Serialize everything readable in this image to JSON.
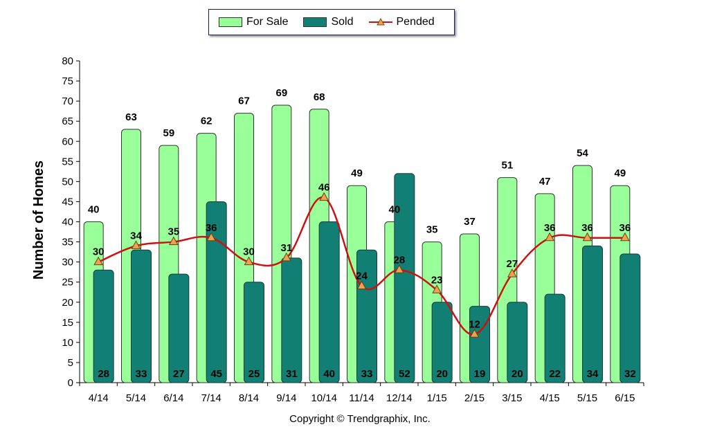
{
  "chart_data": {
    "type": "bar",
    "categories": [
      "4/14",
      "5/14",
      "6/14",
      "7/14",
      "8/14",
      "9/14",
      "10/14",
      "11/14",
      "12/14",
      "1/15",
      "2/15",
      "3/15",
      "4/15",
      "5/15",
      "6/15"
    ],
    "series": [
      {
        "name": "For Sale",
        "type": "bar",
        "color": "#99ff99",
        "values": [
          40,
          63,
          59,
          62,
          67,
          69,
          68,
          49,
          40,
          35,
          37,
          51,
          47,
          54,
          49
        ]
      },
      {
        "name": "Sold",
        "type": "bar",
        "color": "#127f74",
        "values": [
          28,
          33,
          27,
          45,
          25,
          31,
          40,
          33,
          52,
          20,
          19,
          20,
          22,
          34,
          32
        ]
      },
      {
        "name": "Pended",
        "type": "line",
        "color": "#cc1111",
        "marker_color": "#f0a050",
        "values": [
          30,
          34,
          35,
          36,
          30,
          31,
          46,
          24,
          28,
          23,
          12,
          27,
          36,
          36,
          36
        ]
      }
    ],
    "title": "",
    "xlabel": "",
    "ylabel": "Number of Homes",
    "ylim": [
      0,
      80
    ],
    "yticks": [
      0,
      5,
      10,
      15,
      20,
      25,
      30,
      35,
      40,
      45,
      50,
      55,
      60,
      65,
      70,
      75,
      80
    ],
    "grid": false,
    "legend_position": "top-center"
  },
  "legend": {
    "for_sale": "For Sale",
    "sold": "Sold",
    "pended": "Pended"
  },
  "footer": {
    "copyright": "Copyright © Trendgraphix, Inc."
  }
}
